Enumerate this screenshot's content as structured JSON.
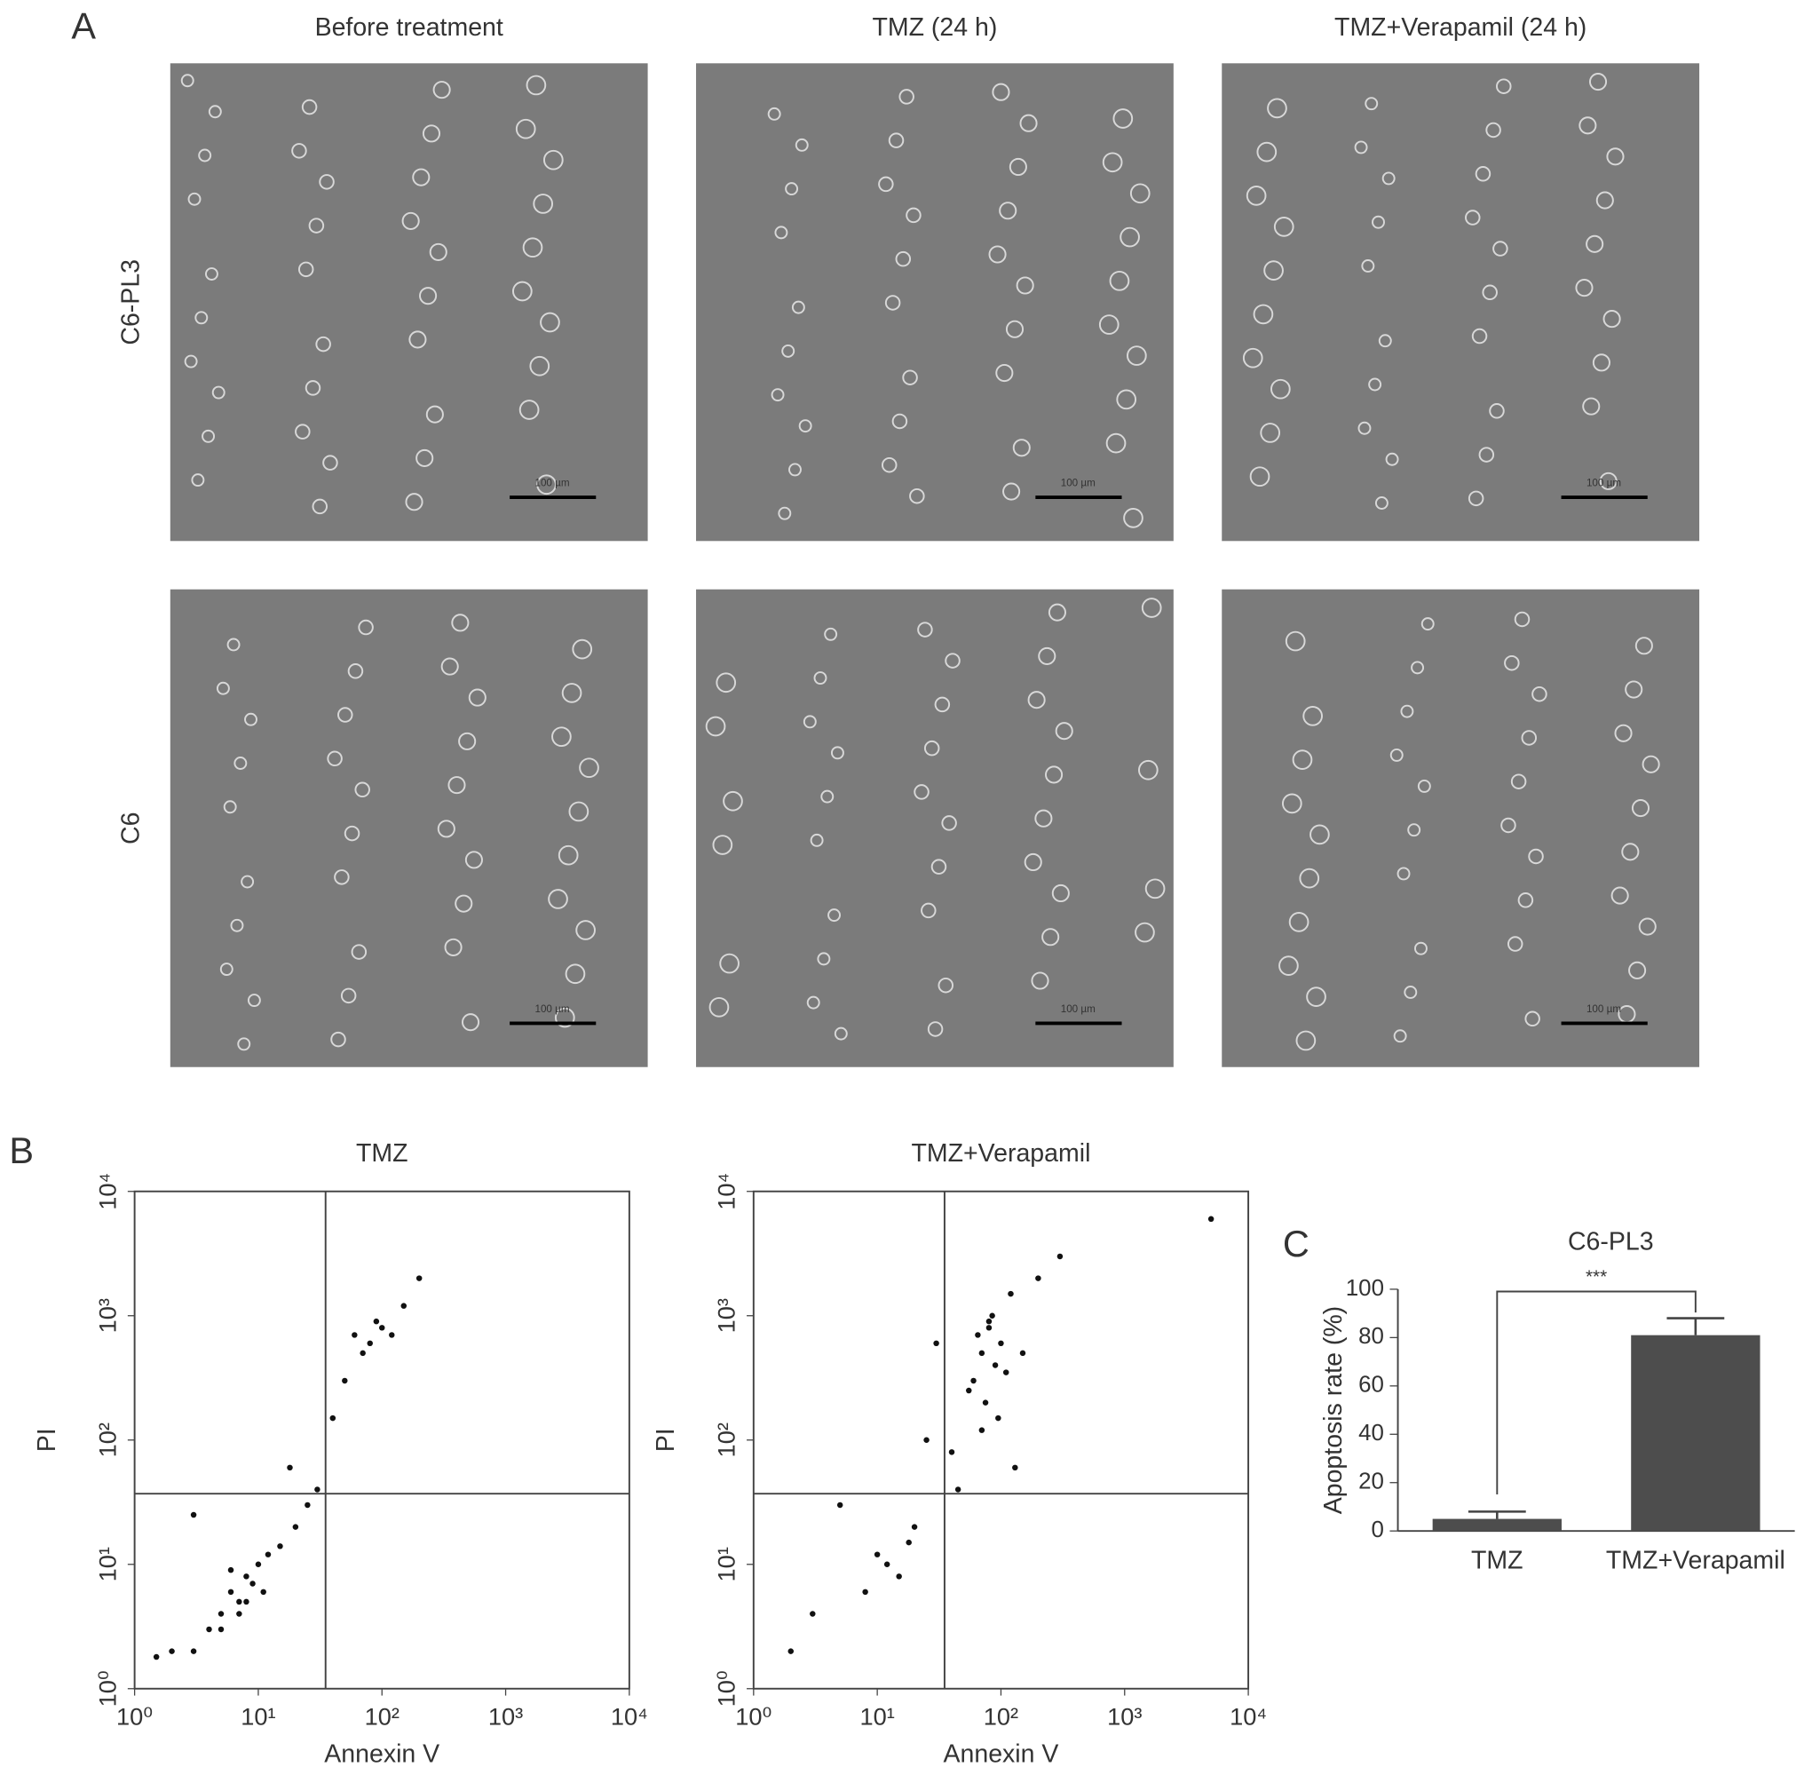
{
  "panel_a": {
    "label": "A",
    "columns": [
      "Before treatment",
      "TMZ (24 h)",
      "TMZ+Verapamil (24 h)"
    ],
    "rows": [
      "C6-PL3",
      "C6"
    ],
    "scale_bar": "100 µm"
  },
  "panel_b": {
    "label": "B"
  },
  "panel_c": {
    "label": "C"
  },
  "chart_data": [
    {
      "type": "scatter",
      "title": "TMZ",
      "x_label": "Annexin V",
      "y_label": "PI",
      "log_x": true,
      "log_y": true,
      "xlim": [
        1,
        10000
      ],
      "ylim": [
        1,
        10000
      ],
      "xticks": [
        {
          "value": 1,
          "label": "10⁰"
        },
        {
          "value": 10,
          "label": "10¹"
        },
        {
          "value": 100,
          "label": "10²"
        },
        {
          "value": 1000,
          "label": "10³"
        },
        {
          "value": 10000,
          "label": "10⁴"
        }
      ],
      "yticks": [
        {
          "value": 1,
          "label": "10⁰"
        },
        {
          "value": 10,
          "label": "10¹"
        },
        {
          "value": 100,
          "label": "10²"
        },
        {
          "value": 1000,
          "label": "10³"
        },
        {
          "value": 10000,
          "label": "10⁴"
        }
      ],
      "gates": {
        "x": 35,
        "y": 37
      },
      "color": "#111111",
      "x": [
        6,
        8,
        5,
        10,
        7,
        4,
        9,
        12,
        3,
        6,
        15,
        2,
        11,
        8,
        5,
        20,
        1.5,
        7,
        25,
        30,
        60,
        80,
        100,
        70,
        150,
        50,
        200,
        40,
        90,
        120,
        3,
        18
      ],
      "y": [
        6,
        8,
        4,
        10,
        5,
        3,
        7,
        12,
        2,
        9,
        14,
        2,
        6,
        5,
        3,
        20,
        1.8,
        4,
        30,
        40,
        700,
        600,
        800,
        500,
        1200,
        300,
        2000,
        150,
        900,
        700,
        25,
        60
      ]
    },
    {
      "type": "scatter",
      "title": "TMZ+Verapamil",
      "x_label": "Annexin V",
      "y_label": "PI",
      "log_x": true,
      "log_y": true,
      "xlim": [
        1,
        10000
      ],
      "ylim": [
        1,
        10000
      ],
      "xticks": [
        {
          "value": 1,
          "label": "10⁰"
        },
        {
          "value": 10,
          "label": "10¹"
        },
        {
          "value": 100,
          "label": "10²"
        },
        {
          "value": 1000,
          "label": "10³"
        },
        {
          "value": 10000,
          "label": "10⁴"
        }
      ],
      "yticks": [
        {
          "value": 1,
          "label": "10⁰"
        },
        {
          "value": 10,
          "label": "10¹"
        },
        {
          "value": 100,
          "label": "10²"
        },
        {
          "value": 1000,
          "label": "10³"
        },
        {
          "value": 10000,
          "label": "10⁴"
        }
      ],
      "gates": {
        "x": 35,
        "y": 37
      },
      "color": "#111111",
      "x": [
        70,
        80,
        60,
        90,
        100,
        75,
        85,
        65,
        110,
        120,
        55,
        95,
        80,
        70,
        150,
        200,
        40,
        30,
        12,
        15,
        10,
        18,
        8,
        20,
        5,
        3,
        2,
        25,
        45,
        130,
        300,
        5000
      ],
      "y": [
        500,
        800,
        300,
        400,
        600,
        200,
        1000,
        700,
        350,
        1500,
        250,
        150,
        900,
        120,
        500,
        2000,
        80,
        600,
        10,
        8,
        12,
        15,
        6,
        20,
        30,
        4,
        2,
        100,
        40,
        60,
        3000,
        6000
      ]
    },
    {
      "type": "bar",
      "title": "C6-PL3",
      "y_label": "Apoptosis rate (%)",
      "categories": [
        "TMZ",
        "TMZ+Verapamil"
      ],
      "values": [
        5,
        81
      ],
      "errors": [
        3,
        7
      ],
      "ylim": [
        0,
        100
      ],
      "yticks": [
        0,
        20,
        40,
        60,
        80,
        100
      ],
      "color": "#4d4d4d",
      "significance": "***"
    }
  ]
}
